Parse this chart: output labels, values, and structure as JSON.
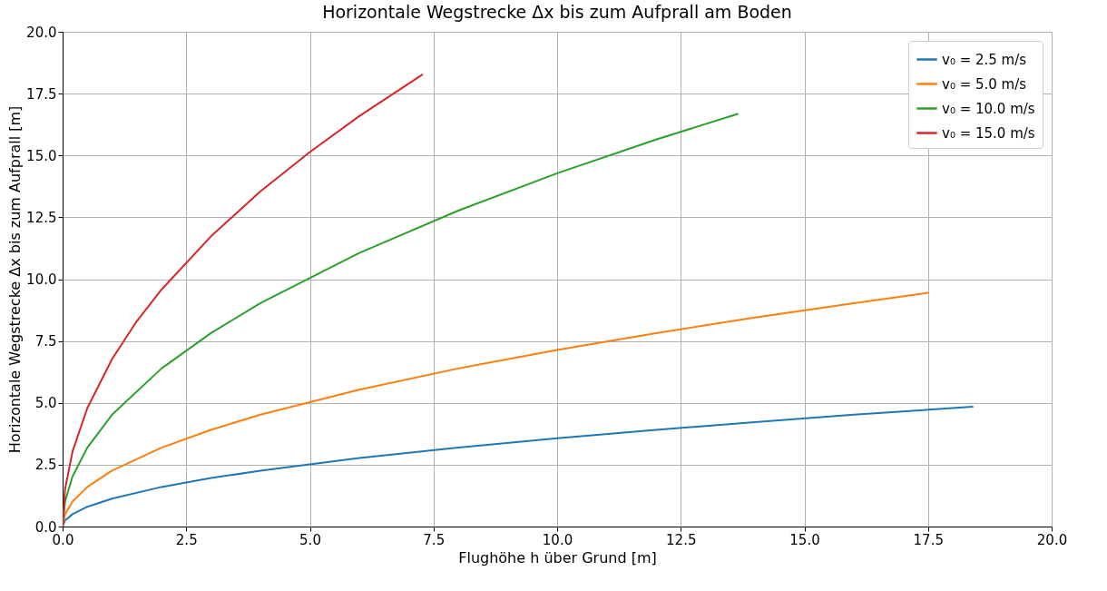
{
  "chart_data": {
    "type": "line",
    "title": "Horizontale Wegstrecke Δx bis zum Aufprall am Boden",
    "xlabel": "Flughöhe h über Grund [m]",
    "ylabel": "Horizontale Wegstrecke Δx bis zum Aufprall [m]",
    "xlim": [
      0,
      20
    ],
    "ylim": [
      0,
      20
    ],
    "xticks": [
      {
        "value": 0,
        "label": "0.0"
      },
      {
        "value": 2.5,
        "label": "2.5"
      },
      {
        "value": 5,
        "label": "5.0"
      },
      {
        "value": 7.5,
        "label": "7.5"
      },
      {
        "value": 10,
        "label": "10.0"
      },
      {
        "value": 12.5,
        "label": "12.5"
      },
      {
        "value": 15,
        "label": "15.0"
      },
      {
        "value": 17.5,
        "label": "17.5"
      },
      {
        "value": 20,
        "label": "20.0"
      }
    ],
    "yticks": [
      {
        "value": 0,
        "label": "0.0"
      },
      {
        "value": 2.5,
        "label": "2.5"
      },
      {
        "value": 5,
        "label": "5.0"
      },
      {
        "value": 7.5,
        "label": "7.5"
      },
      {
        "value": 10,
        "label": "10.0"
      },
      {
        "value": 12.5,
        "label": "12.5"
      },
      {
        "value": 15,
        "label": "15.0"
      },
      {
        "value": 17.5,
        "label": "17.5"
      },
      {
        "value": 20,
        "label": "20.0"
      }
    ],
    "grid": true,
    "legend": "top right",
    "marker": "none",
    "line_style": "solid",
    "series": [
      {
        "name": "v₀ = 2.5 m/s",
        "color": "#1f77b4",
        "x": [
          0,
          0.05,
          0.2,
          0.5,
          1,
          2,
          3,
          4,
          6,
          8,
          10,
          12,
          14,
          16,
          18.4
        ],
        "values": [
          0,
          0.25,
          0.5,
          0.8,
          1.13,
          1.6,
          1.96,
          2.26,
          2.77,
          3.19,
          3.57,
          3.91,
          4.22,
          4.52,
          4.84
        ]
      },
      {
        "name": "v₀ = 5.0 m/s",
        "color": "#ff7f0e",
        "x": [
          0,
          0.05,
          0.2,
          0.5,
          1,
          2,
          3,
          4,
          6,
          8,
          10,
          12,
          14,
          16,
          17.5
        ],
        "values": [
          0,
          0.5,
          1.01,
          1.6,
          2.26,
          3.19,
          3.91,
          4.52,
          5.53,
          6.39,
          7.14,
          7.82,
          8.45,
          9.03,
          9.45
        ]
      },
      {
        "name": "v₀ = 10.0 m/s",
        "color": "#2ca02c",
        "x": [
          0,
          0.05,
          0.2,
          0.5,
          1,
          2,
          3,
          4,
          6,
          8,
          10,
          12,
          13.65
        ],
        "values": [
          0,
          1.01,
          2.02,
          3.19,
          4.52,
          6.39,
          7.82,
          9.03,
          11.06,
          12.77,
          14.28,
          15.64,
          16.68
        ]
      },
      {
        "name": "v₀ = 15.0 m/s",
        "color": "#d62728",
        "x": [
          0,
          0.05,
          0.2,
          0.5,
          1,
          1.5,
          2,
          3,
          4,
          5,
          6,
          7.27
        ],
        "values": [
          0,
          1.51,
          3.03,
          4.79,
          6.77,
          8.3,
          9.58,
          11.73,
          13.55,
          15.14,
          16.59,
          18.26
        ]
      }
    ]
  }
}
